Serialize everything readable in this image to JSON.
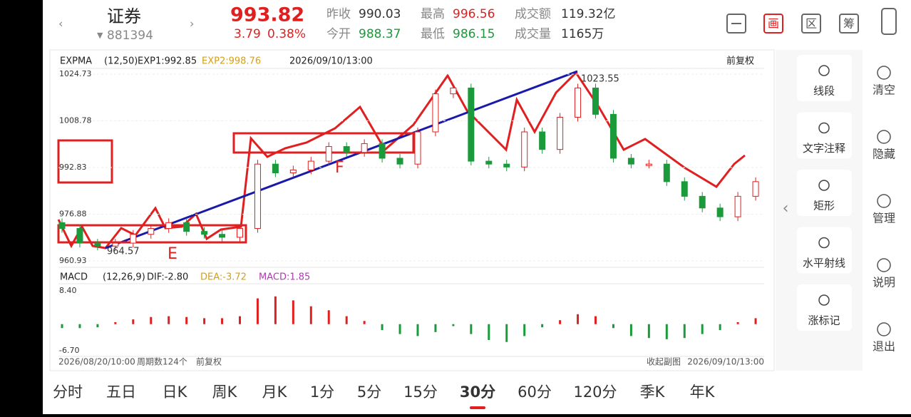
{
  "header": {
    "name": "证券",
    "code": "881394",
    "price": "993.82",
    "change": "3.79",
    "change_pct": "0.38%",
    "stats": [
      [
        "昨收",
        "990.03"
      ],
      [
        "今开",
        "988.37"
      ],
      [
        "最高",
        "996.56"
      ],
      [
        "最低",
        "986.15"
      ],
      [
        "成交额",
        "119.32亿"
      ],
      [
        "成交量",
        "1165万"
      ]
    ],
    "buttons": [
      "画",
      "区",
      "筹"
    ]
  },
  "price": {
    "legend": [
      "EXPMA",
      "(12,50)",
      "EXP1:992.85",
      "EXP2:998.76"
    ],
    "time": "2026/09/10/13:00",
    "adjust": "前复权",
    "ylim": [
      960.93,
      1024.73
    ],
    "yticks": [
      1024.73,
      1008.78,
      992.83,
      976.88,
      960.93
    ],
    "closes": [
      972,
      967,
      966,
      967,
      970,
      972,
      974,
      971,
      970,
      969,
      972,
      994,
      991,
      992,
      995,
      1000,
      998,
      1001,
      996,
      994,
      1005,
      1018,
      1020,
      995,
      994,
      993,
      1005,
      999,
      1010,
      1020,
      1011,
      996,
      994,
      994,
      988,
      983,
      979,
      976,
      983,
      988
    ],
    "annotations": [
      "964.57",
      "1023.55",
      "E",
      "F"
    ]
  },
  "macd": {
    "legend": [
      "MACD",
      "(12,26,9)",
      "DIF:-2.80",
      "DEA:-3.72",
      "MACD:1.85"
    ],
    "ylim": [
      -6.7,
      8.4
    ],
    "yticks": [
      {
        "value": 8.4,
        "label": "8.40"
      },
      {
        "value": -6.7,
        "label": "-6.70"
      }
    ],
    "hist": [
      -1,
      -1,
      -0.8,
      0.5,
      1.2,
      1.8,
      2,
      1.8,
      1.5,
      1.5,
      2,
      6.5,
      7,
      6,
      4.5,
      3.5,
      2,
      0.8,
      -1.5,
      -2.5,
      -3,
      -2,
      -0.5,
      -2.5,
      -4,
      -4.5,
      -3,
      -0.8,
      1,
      2.5,
      2,
      -1,
      -3,
      -3.5,
      -3.8,
      -3.5,
      -2.5,
      -1.5,
      0.5,
      1.5
    ]
  },
  "footer": [
    "2026/08/20/10:00",
    "周期数124个",
    "前复权",
    "收起副图",
    "2026/09/10/13:00"
  ],
  "tools": [
    "线段",
    "文字注释",
    "矩形",
    "水平射线",
    "涨标记"
  ],
  "side": [
    "清空",
    "隐藏",
    "管理",
    "说明",
    "退出"
  ],
  "tabs": [
    "分时",
    "五日",
    "日K",
    "周K",
    "月K",
    "1分",
    "5分",
    "15分",
    "30分",
    "60分",
    "120分",
    "季K",
    "年K"
  ]
}
